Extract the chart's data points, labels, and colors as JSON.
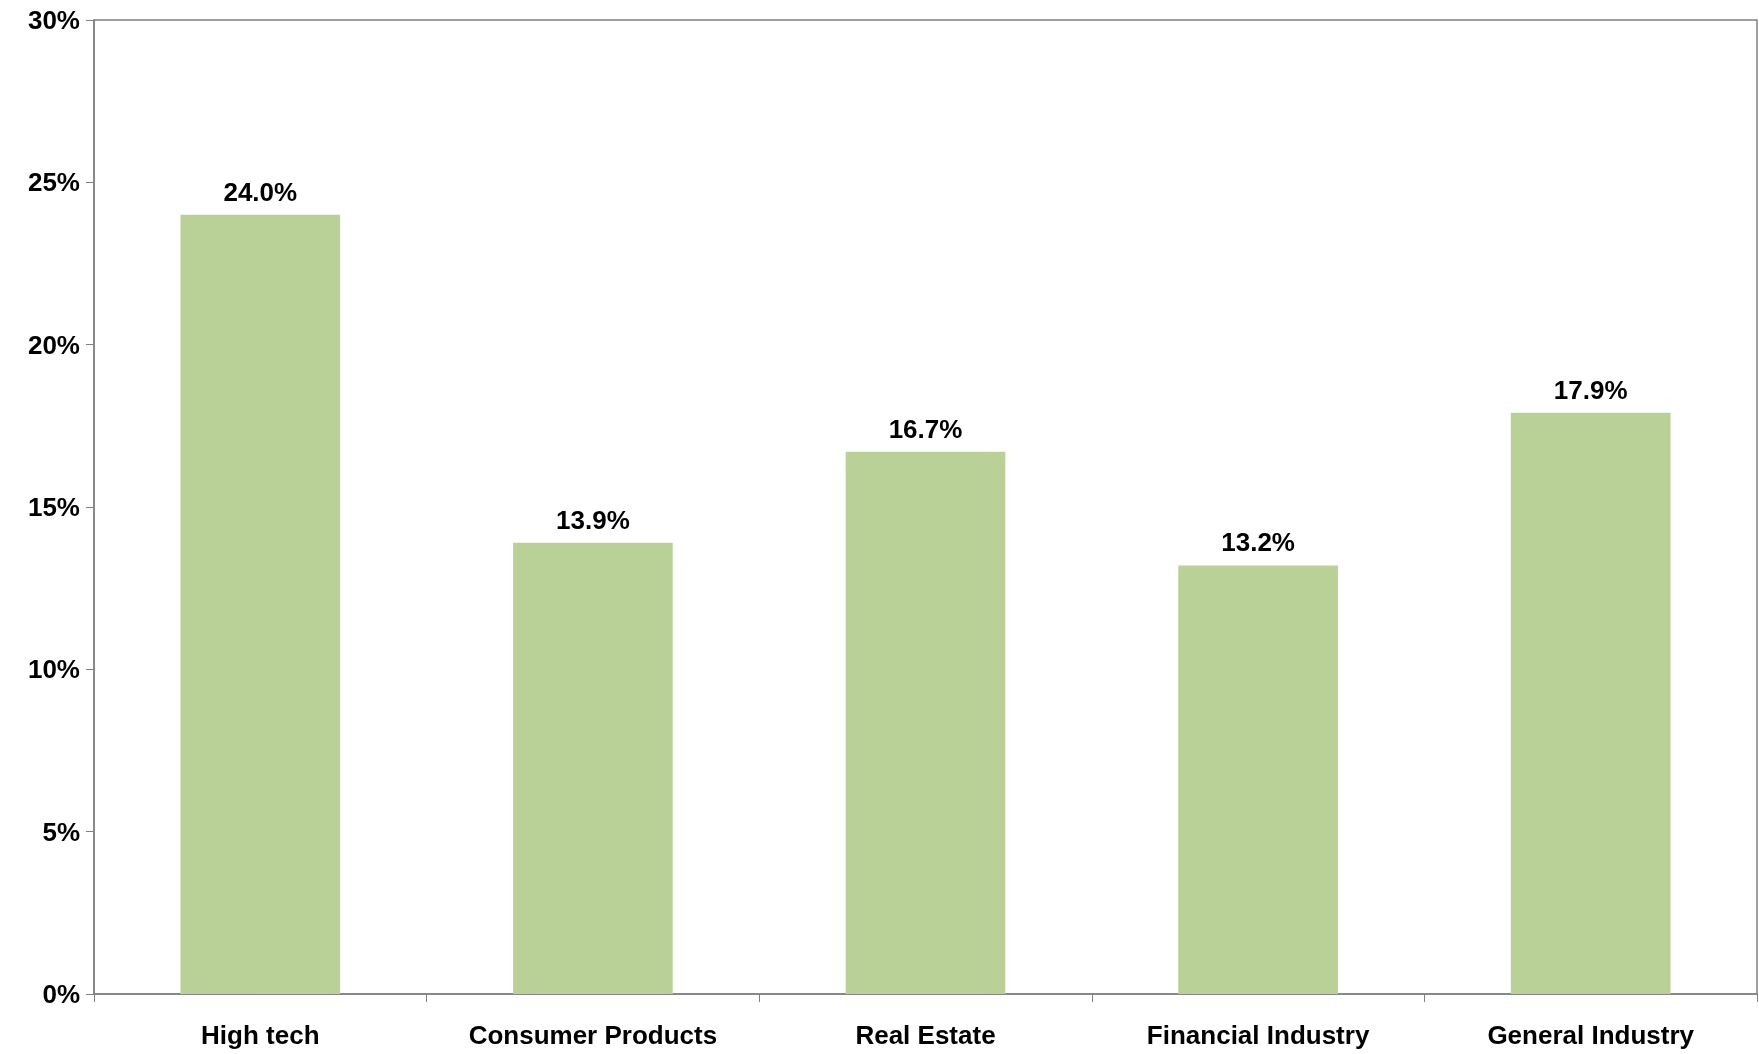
{
  "chart_data": {
    "type": "bar",
    "categories": [
      "High tech",
      "Consumer Products",
      "Real Estate",
      "Financial Industry",
      "General Industry"
    ],
    "values": [
      24.0,
      13.9,
      16.7,
      13.2,
      17.9
    ],
    "value_labels": [
      "24.0%",
      "13.9%",
      "16.7%",
      "13.2%",
      "17.9%"
    ],
    "color": "#b9d196",
    "ylim": [
      0,
      30
    ],
    "yticks": [
      {
        "value": 0,
        "label": "0%"
      },
      {
        "value": 5,
        "label": "5%"
      },
      {
        "value": 10,
        "label": "10%"
      },
      {
        "value": 15,
        "label": "15%"
      },
      {
        "value": 20,
        "label": "20%"
      },
      {
        "value": 25,
        "label": "25%"
      },
      {
        "value": 30,
        "label": "30%"
      }
    ]
  }
}
